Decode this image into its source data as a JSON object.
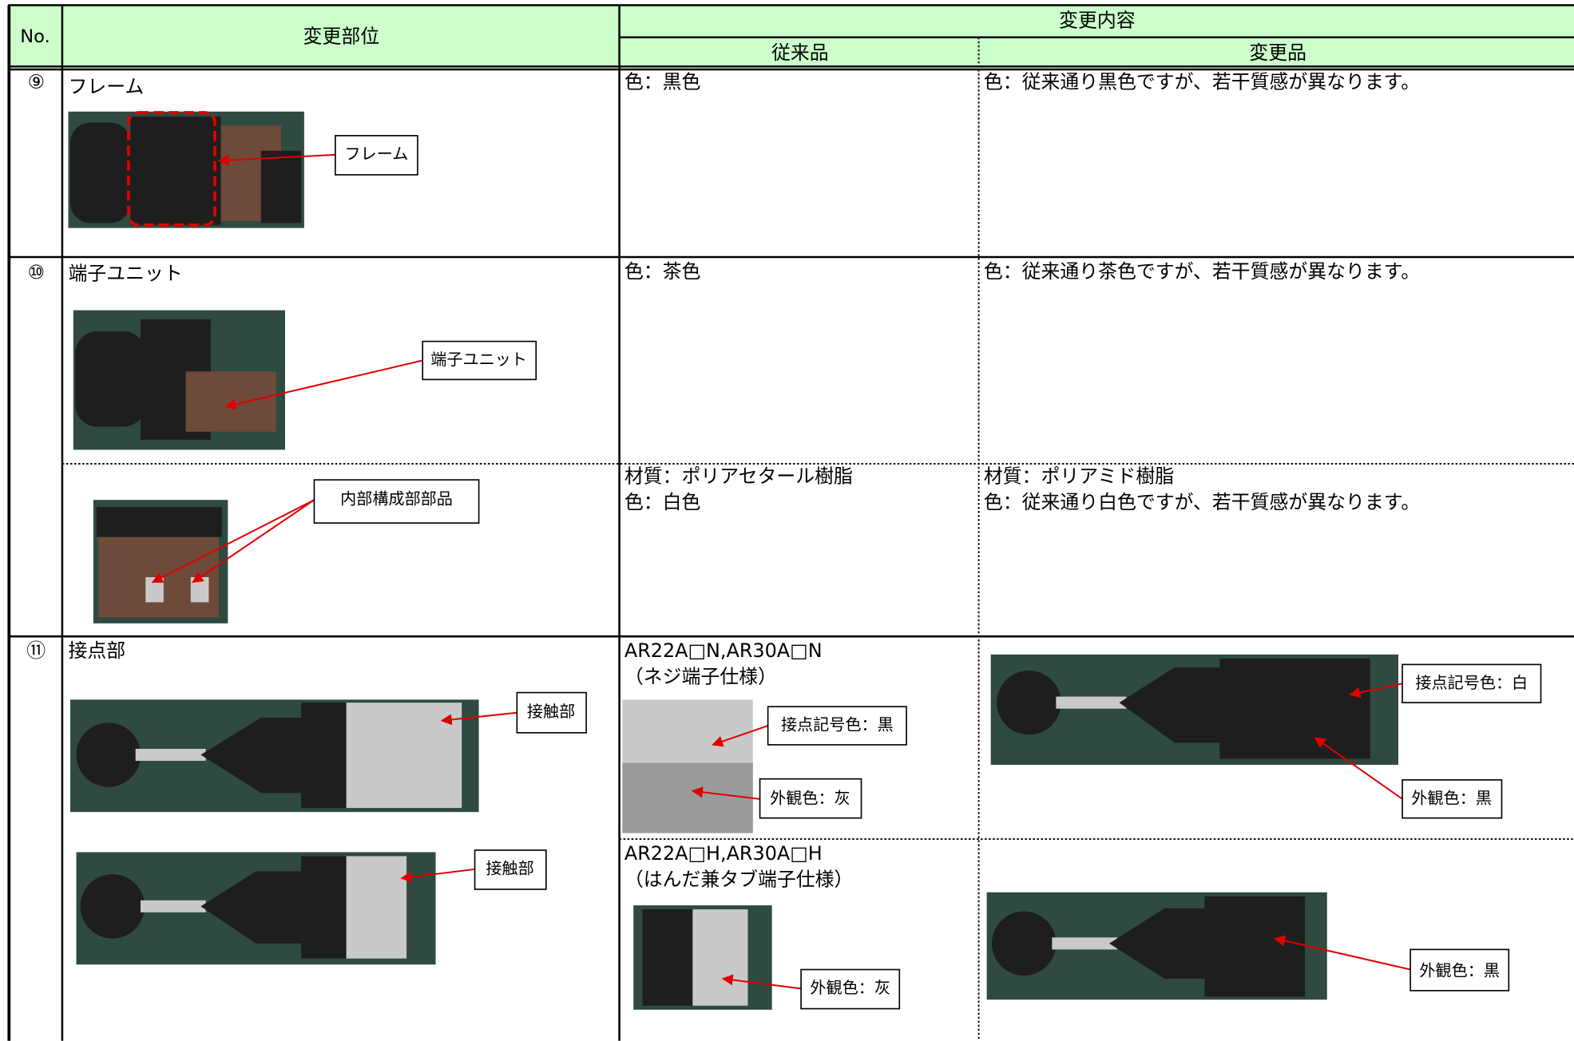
{
  "header": {
    "no": "No.",
    "part": "変更部位",
    "content": "変更内容",
    "before": "従来品",
    "after": "変更品"
  },
  "rows": [
    {
      "no": "⑨",
      "part": "フレーム",
      "sections": [
        {
          "callouts": [
            "フレーム"
          ],
          "before": [
            "色：黒色"
          ],
          "after": [
            "色：従来通り黒色ですが、若干質感が異なります。"
          ]
        }
      ]
    },
    {
      "no": "⑩",
      "part": "端子ユニット",
      "sections": [
        {
          "callouts": [
            "端子ユニット"
          ],
          "before": [
            "色：茶色"
          ],
          "after": [
            "色：従来通り茶色ですが、若干質感が異なります。"
          ]
        },
        {
          "callouts": [
            "内部構成部部品"
          ],
          "before": [
            "材質：ポリアセタール樹脂",
            "色：白色"
          ],
          "after": [
            "材質：ポリアミド樹脂",
            "色：従来通り白色ですが、若干質感が異なります。"
          ]
        }
      ]
    },
    {
      "no": "⑪",
      "part": "接点部",
      "sections": [
        {
          "callouts": [
            "接触部"
          ],
          "before": [
            "AR22A□N,AR30A□N",
            "（ネジ端子仕様）"
          ],
          "before_callouts": [
            "接点記号色：黒",
            "外観色：灰"
          ],
          "after_callouts": [
            "接点記号色：白",
            "外観色：黒"
          ]
        },
        {
          "callouts": [
            "接触部"
          ],
          "before": [
            "AR22A□H,AR30A□H",
            "（はんだ兼タブ端子仕様）"
          ],
          "before_callouts": [
            "外観色：灰"
          ],
          "after_callouts": [
            "外観色：黒"
          ]
        }
      ]
    }
  ]
}
